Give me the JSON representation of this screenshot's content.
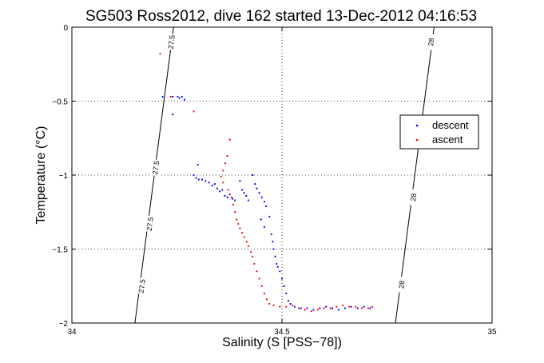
{
  "chart_data": {
    "type": "scatter",
    "title": "SG503 Ross2012, dive 162 started 13-Dec-2012 04:16:53",
    "xlabel": "Salinity (S [PSS−78])",
    "ylabel": "Temperature (°C)",
    "xlim": [
      34,
      35
    ],
    "ylim": [
      -2,
      0
    ],
    "x_ticks": [
      34,
      34.5,
      35
    ],
    "y_ticks": [
      0,
      -0.5,
      -1,
      -1.5,
      -2
    ],
    "x_tick_labels": [
      "34",
      "34.5",
      "35"
    ],
    "y_tick_labels": [
      "0",
      "-0.5",
      "-1",
      "-1.5",
      "-2"
    ],
    "grid": true,
    "legend_position": "right",
    "isopycnals": [
      {
        "label": "27.5",
        "points": [
          [
            34.15,
            -2
          ],
          [
            34.242,
            0
          ]
        ],
        "label_positions": [
          [
            34.167,
            -1.75
          ],
          [
            34.186,
            -1.33
          ],
          [
            34.2,
            -0.95
          ],
          [
            34.237,
            -0.1
          ]
        ]
      },
      {
        "label": "28",
        "points": [
          [
            34.77,
            -2
          ],
          [
            34.862,
            0
          ]
        ],
        "label_positions": [
          [
            34.785,
            -1.74
          ],
          [
            34.813,
            -1.15
          ],
          [
            34.855,
            -0.1
          ]
        ]
      }
    ],
    "series": [
      {
        "name": "descent",
        "color": "#0000ff",
        "points": [
          [
            34.216,
            -0.47
          ],
          [
            34.24,
            -0.47
          ],
          [
            34.252,
            -0.47
          ],
          [
            34.256,
            -0.48
          ],
          [
            34.262,
            -0.47
          ],
          [
            34.268,
            -0.49
          ],
          [
            34.24,
            -0.59
          ],
          [
            34.3,
            -0.93
          ],
          [
            34.29,
            -1.0
          ],
          [
            34.296,
            -1.02
          ],
          [
            34.302,
            -1.03
          ],
          [
            34.31,
            -1.03
          ],
          [
            34.318,
            -1.04
          ],
          [
            34.326,
            -1.05
          ],
          [
            34.334,
            -1.07
          ],
          [
            34.34,
            -1.06
          ],
          [
            34.346,
            -1.09
          ],
          [
            34.352,
            -1.11
          ],
          [
            34.358,
            -1.1
          ],
          [
            34.364,
            -1.14
          ],
          [
            34.37,
            -1.15
          ],
          [
            34.376,
            -1.13
          ],
          [
            34.382,
            -1.16
          ],
          [
            34.388,
            -1.17
          ],
          [
            34.4,
            -1.04
          ],
          [
            34.405,
            -1.1
          ],
          [
            34.41,
            -1.12
          ],
          [
            34.415,
            -1.14
          ],
          [
            34.42,
            -1.17
          ],
          [
            34.43,
            -1.0
          ],
          [
            34.436,
            -1.06
          ],
          [
            34.44,
            -1.09
          ],
          [
            34.446,
            -1.12
          ],
          [
            34.452,
            -1.15
          ],
          [
            34.458,
            -1.18
          ],
          [
            34.462,
            -1.21
          ],
          [
            34.47,
            -1.28
          ],
          [
            34.45,
            -1.3
          ],
          [
            34.458,
            -1.35
          ],
          [
            34.475,
            -1.4
          ],
          [
            34.478,
            -1.45
          ],
          [
            34.48,
            -1.5
          ],
          [
            34.484,
            -1.55
          ],
          [
            34.487,
            -1.6
          ],
          [
            34.49,
            -1.62
          ],
          [
            34.495,
            -1.65
          ],
          [
            34.5,
            -1.7
          ],
          [
            34.505,
            -1.75
          ],
          [
            34.51,
            -1.8
          ],
          [
            34.515,
            -1.85
          ],
          [
            34.52,
            -1.87
          ],
          [
            34.53,
            -1.89
          ],
          [
            34.545,
            -1.9
          ],
          [
            34.56,
            -1.9
          ],
          [
            34.575,
            -1.91
          ],
          [
            34.59,
            -1.9
          ],
          [
            34.605,
            -1.89
          ],
          [
            34.62,
            -1.9
          ],
          [
            34.635,
            -1.91
          ],
          [
            34.65,
            -1.9
          ],
          [
            34.665,
            -1.89
          ],
          [
            34.68,
            -1.9
          ],
          [
            34.695,
            -1.89
          ],
          [
            34.71,
            -1.9
          ]
        ]
      },
      {
        "name": "ascent",
        "color": "#ff0000",
        "points": [
          [
            34.21,
            -0.18
          ],
          [
            34.235,
            -0.47
          ],
          [
            34.29,
            -0.57
          ],
          [
            34.376,
            -0.76
          ],
          [
            34.37,
            -0.87
          ],
          [
            34.365,
            -0.92
          ],
          [
            34.36,
            -0.97
          ],
          [
            34.355,
            -1.01
          ],
          [
            34.36,
            -1.05
          ],
          [
            34.372,
            -1.1
          ],
          [
            34.38,
            -1.15
          ],
          [
            34.384,
            -1.2
          ],
          [
            34.388,
            -1.25
          ],
          [
            34.392,
            -1.3
          ],
          [
            34.396,
            -1.33
          ],
          [
            34.4,
            -1.36
          ],
          [
            34.405,
            -1.39
          ],
          [
            34.41,
            -1.42
          ],
          [
            34.416,
            -1.45
          ],
          [
            34.42,
            -1.48
          ],
          [
            34.426,
            -1.52
          ],
          [
            34.43,
            -1.55
          ],
          [
            34.434,
            -1.6
          ],
          [
            34.44,
            -1.65
          ],
          [
            34.446,
            -1.7
          ],
          [
            34.452,
            -1.75
          ],
          [
            34.458,
            -1.8
          ],
          [
            34.464,
            -1.84
          ],
          [
            34.47,
            -1.87
          ],
          [
            34.48,
            -1.88
          ],
          [
            34.495,
            -1.89
          ],
          [
            34.51,
            -1.89
          ],
          [
            34.525,
            -1.88
          ],
          [
            34.54,
            -1.9
          ],
          [
            34.555,
            -1.91
          ],
          [
            34.57,
            -1.92
          ],
          [
            34.585,
            -1.91
          ],
          [
            34.6,
            -1.9
          ],
          [
            34.615,
            -1.9
          ],
          [
            34.63,
            -1.89
          ],
          [
            34.645,
            -1.88
          ],
          [
            34.66,
            -1.89
          ],
          [
            34.675,
            -1.89
          ],
          [
            34.69,
            -1.9
          ],
          [
            34.705,
            -1.9
          ],
          [
            34.715,
            -1.89
          ]
        ]
      }
    ]
  }
}
